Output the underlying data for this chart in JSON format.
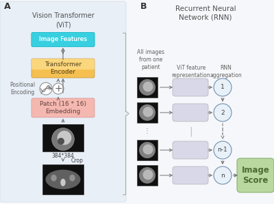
{
  "title_a": "Vision Transformer\n(ViT)",
  "title_b": "Recurrent Neural\nNetwork (RNN)",
  "label_a": "A",
  "label_b": "B",
  "box_image_features": "Image Features",
  "box_transformer": "Transformer\nEncoder",
  "box_patch": "Patch (16 * 16)\nEmbedding",
  "label_positional": "Positional\nEncoding",
  "label_384": "384*384",
  "label_crop": "Crop",
  "label_all_images": "All images\nfrom one\npatient",
  "label_vit_feature": "ViT feature\nrepresentation",
  "label_rnn_agg": "RNN\naggregation",
  "label_image_score": "Image\nScore",
  "rnn_nodes": [
    "1",
    "2",
    "n-1",
    "n"
  ],
  "bg_color": "#f5f7fa",
  "panel_a_bg": "#dce8f5",
  "box_image_features_color": "#38d0e0",
  "box_transformer_color": "#f0b040",
  "box_patch_color": "#f5b8b0",
  "box_image_score_color": "#b8d8a0",
  "rnn_circle_color": "#e8f0f8",
  "feature_box_color": "#d8d8e8",
  "arrow_color": "#707070",
  "text_color": "#404040",
  "title_color": "#505050",
  "panel_a_border": "#c0ccd8"
}
